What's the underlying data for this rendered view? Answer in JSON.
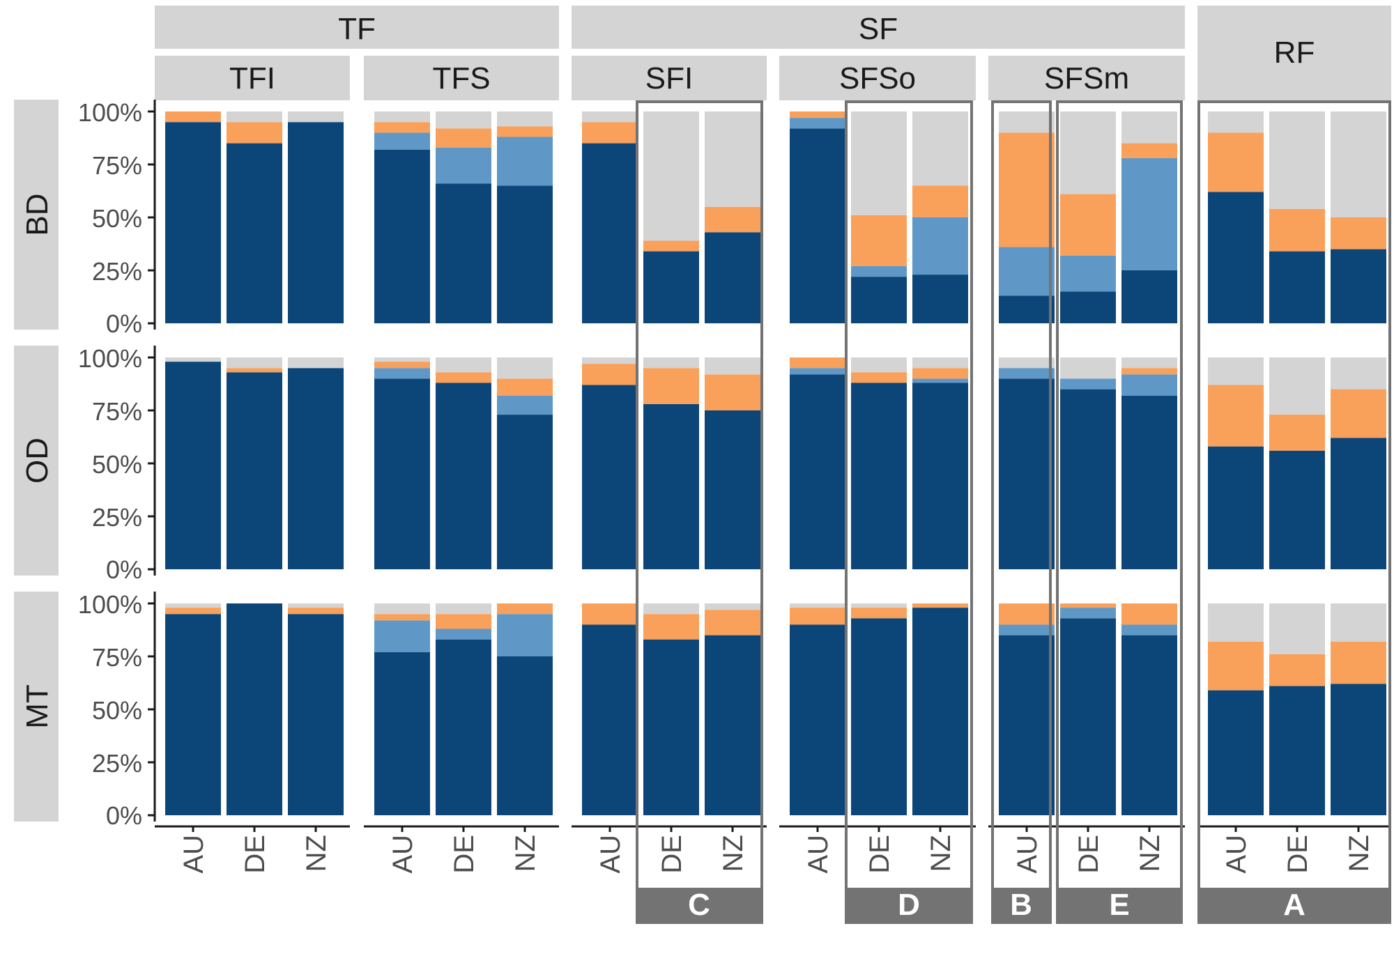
{
  "colors": {
    "strip": "#d4d4d4",
    "navy": "#0c4679",
    "lightblue": "#5f98c6",
    "orange": "#f9a05a",
    "grey": "#d4d4d4",
    "axis": "#1a1a1a",
    "highlight_box": "#737373"
  },
  "header": {
    "top_groups": [
      "TF",
      "SF",
      "RF"
    ],
    "sub_groups": [
      "TFI",
      "TFS",
      "SFI",
      "SFSo",
      "SFSm"
    ]
  },
  "chart_data": {
    "type": "bar",
    "stacked": true,
    "rows": [
      "BD",
      "OD",
      "MT"
    ],
    "columns": [
      "TFI",
      "TFS",
      "SFI",
      "SFSo",
      "SFSm",
      "RF"
    ],
    "categories": [
      "AU",
      "DE",
      "NZ"
    ],
    "y_ticks": [
      "0%",
      "25%",
      "50%",
      "75%",
      "100%"
    ],
    "ylim": [
      0,
      100
    ],
    "segment_order": [
      "navy",
      "lightblue",
      "orange",
      "grey"
    ],
    "values": {
      "BD": {
        "TFI": [
          [
            95,
            0,
            5,
            0
          ],
          [
            85,
            0,
            10,
            5
          ],
          [
            95,
            0,
            0,
            5
          ]
        ],
        "TFS": [
          [
            82,
            8,
            5,
            5
          ],
          [
            66,
            17,
            9,
            8
          ],
          [
            65,
            23,
            5,
            7
          ]
        ],
        "SFI": [
          [
            85,
            0,
            10,
            5
          ],
          [
            34,
            0,
            5,
            61
          ],
          [
            43,
            0,
            12,
            45
          ]
        ],
        "SFSo": [
          [
            92,
            5,
            3,
            0
          ],
          [
            22,
            5,
            24,
            49
          ],
          [
            23,
            27,
            15,
            35
          ]
        ],
        "SFSm": [
          [
            13,
            23,
            54,
            10
          ],
          [
            15,
            17,
            29,
            39
          ],
          [
            25,
            53,
            7,
            15
          ]
        ],
        "RF": [
          [
            62,
            0,
            28,
            10
          ],
          [
            34,
            0,
            20,
            46
          ],
          [
            35,
            0,
            15,
            50
          ]
        ]
      },
      "OD": {
        "TFI": [
          [
            98,
            0,
            0,
            2
          ],
          [
            93,
            0,
            2,
            5
          ],
          [
            95,
            0,
            0,
            5
          ]
        ],
        "TFS": [
          [
            90,
            5,
            3,
            2
          ],
          [
            88,
            0,
            5,
            7
          ],
          [
            73,
            9,
            8,
            10
          ]
        ],
        "SFI": [
          [
            87,
            0,
            10,
            3
          ],
          [
            78,
            0,
            17,
            5
          ],
          [
            75,
            0,
            17,
            8
          ]
        ],
        "SFSo": [
          [
            92,
            3,
            5,
            0
          ],
          [
            88,
            0,
            5,
            7
          ],
          [
            88,
            2,
            5,
            5
          ]
        ],
        "SFSm": [
          [
            90,
            5,
            0,
            5
          ],
          [
            85,
            5,
            0,
            10
          ],
          [
            82,
            10,
            3,
            5
          ]
        ],
        "RF": [
          [
            58,
            0,
            29,
            13
          ],
          [
            56,
            0,
            17,
            27
          ],
          [
            62,
            0,
            23,
            15
          ]
        ]
      },
      "MT": {
        "TFI": [
          [
            95,
            0,
            3,
            2
          ],
          [
            100,
            0,
            0,
            0
          ],
          [
            95,
            0,
            3,
            2
          ]
        ],
        "TFS": [
          [
            77,
            15,
            3,
            5
          ],
          [
            83,
            5,
            7,
            5
          ],
          [
            75,
            20,
            5,
            0
          ]
        ],
        "SFI": [
          [
            90,
            0,
            10,
            0
          ],
          [
            83,
            0,
            12,
            5
          ],
          [
            85,
            0,
            12,
            3
          ]
        ],
        "SFSo": [
          [
            90,
            0,
            8,
            2
          ],
          [
            93,
            0,
            5,
            2
          ],
          [
            98,
            0,
            2,
            0
          ]
        ],
        "SFSm": [
          [
            85,
            5,
            10,
            0
          ],
          [
            93,
            5,
            2,
            0
          ],
          [
            85,
            5,
            10,
            0
          ]
        ],
        "RF": [
          [
            59,
            0,
            23,
            18
          ],
          [
            61,
            0,
            15,
            24
          ],
          [
            62,
            0,
            20,
            18
          ]
        ]
      }
    },
    "highlight_boxes": [
      {
        "label": "C",
        "column": "SFI",
        "categories": [
          "DE",
          "NZ"
        ]
      },
      {
        "label": "D",
        "column": "SFSo",
        "categories": [
          "DE",
          "NZ"
        ]
      },
      {
        "label": "B",
        "column": "SFSm",
        "categories": [
          "AU"
        ]
      },
      {
        "label": "E",
        "column": "SFSm",
        "categories": [
          "DE",
          "NZ"
        ]
      },
      {
        "label": "A",
        "column": "RF",
        "categories": [
          "AU",
          "DE",
          "NZ"
        ]
      }
    ]
  }
}
